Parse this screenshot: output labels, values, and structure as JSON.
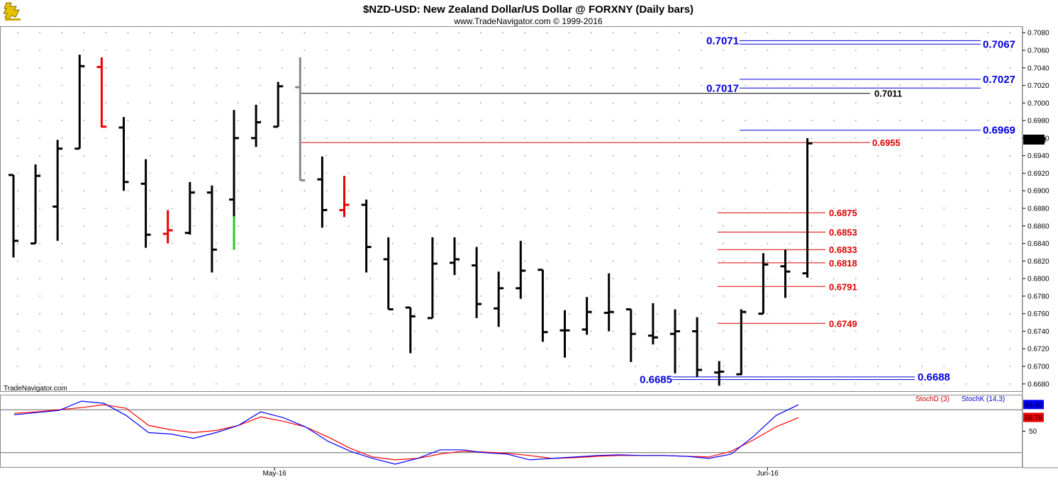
{
  "header": {
    "title": "$NZD-USD:  New Zealand Dollar/US Dollar @ FORXNY  (Daily bars)",
    "subtitle": "www.TradeNavigator.com © 1999-2016",
    "logo_icon": "trade-navigator-logo-icon"
  },
  "watermark": "TradeNavigator.com",
  "last_price_label": "0.6954",
  "chart_data": [
    {
      "type": "ohlc",
      "title": "$NZD-USD:  New Zealand Dollar/US Dollar @ FORXNY  (Daily bars)",
      "ylim": [
        0.6675,
        0.7085
      ],
      "y_ticks": [
        "0.6680",
        "0.6700",
        "0.6720",
        "0.6740",
        "0.6760",
        "0.6780",
        "0.6800",
        "0.6820",
        "0.6840",
        "0.6860",
        "0.6880",
        "0.6900",
        "0.6920",
        "0.6940",
        "0.6960",
        "0.6980",
        "0.7000",
        "0.7020",
        "0.7040",
        "0.7060",
        "0.7080"
      ],
      "x_ticks": [
        {
          "index": 12,
          "label": "May-16"
        },
        {
          "index": 34,
          "label": "Jun-16"
        }
      ],
      "colors": {
        "default": "#000000",
        "down_highlight": "#ee0000",
        "up_highlight": "#22cc22",
        "marker_bar": "#888888"
      },
      "bars": [
        {
          "o": 0.6918,
          "h": 0.6918,
          "l": 0.6824,
          "c": 0.6843,
          "color": "default"
        },
        {
          "o": 0.684,
          "h": 0.693,
          "l": 0.684,
          "c": 0.6917,
          "color": "default"
        },
        {
          "o": 0.6882,
          "h": 0.6958,
          "l": 0.6843,
          "c": 0.6948,
          "color": "default"
        },
        {
          "o": 0.6948,
          "h": 0.7055,
          "l": 0.6948,
          "c": 0.7042,
          "color": "default"
        },
        {
          "o": 0.7041,
          "h": 0.7052,
          "l": 0.6972,
          "c": 0.6973,
          "color": "down_highlight"
        },
        {
          "o": 0.6972,
          "h": 0.6984,
          "l": 0.69,
          "c": 0.691,
          "color": "default"
        },
        {
          "o": 0.6908,
          "h": 0.6936,
          "l": 0.6835,
          "c": 0.685,
          "color": "default"
        },
        {
          "o": 0.6851,
          "h": 0.6878,
          "l": 0.684,
          "c": 0.6855,
          "color": "down_highlight"
        },
        {
          "o": 0.6852,
          "h": 0.691,
          "l": 0.685,
          "c": 0.6898,
          "color": "default"
        },
        {
          "o": 0.6898,
          "h": 0.6906,
          "l": 0.6807,
          "c": 0.6833,
          "color": "default"
        },
        {
          "o": 0.689,
          "h": 0.6992,
          "l": 0.6833,
          "c": 0.696,
          "color": "default",
          "lower_highlight": 0.6871
        },
        {
          "o": 0.696,
          "h": 0.6998,
          "l": 0.695,
          "c": 0.6978,
          "color": "default"
        },
        {
          "o": 0.6973,
          "h": 0.7024,
          "l": 0.6973,
          "c": 0.7019,
          "color": "default"
        },
        {
          "o": 0.7018,
          "h": 0.7052,
          "l": 0.6912,
          "c": 0.6912,
          "color": "marker_bar"
        },
        {
          "o": 0.6913,
          "h": 0.6939,
          "l": 0.6858,
          "c": 0.6878,
          "color": "default"
        },
        {
          "o": 0.6878,
          "h": 0.6917,
          "l": 0.687,
          "c": 0.6884,
          "color": "down_highlight"
        },
        {
          "o": 0.6884,
          "h": 0.689,
          "l": 0.6807,
          "c": 0.6836,
          "color": "default"
        },
        {
          "o": 0.6822,
          "h": 0.6847,
          "l": 0.6765,
          "c": 0.6765,
          "color": "default"
        },
        {
          "o": 0.6767,
          "h": 0.6767,
          "l": 0.6715,
          "c": 0.6757,
          "color": "default"
        },
        {
          "o": 0.6755,
          "h": 0.6847,
          "l": 0.6755,
          "c": 0.6817,
          "color": "default"
        },
        {
          "o": 0.6818,
          "h": 0.6847,
          "l": 0.6804,
          "c": 0.6822,
          "color": "default"
        },
        {
          "o": 0.6815,
          "h": 0.6836,
          "l": 0.6755,
          "c": 0.6771,
          "color": "default"
        },
        {
          "o": 0.6766,
          "h": 0.6808,
          "l": 0.6745,
          "c": 0.6789,
          "color": "default"
        },
        {
          "o": 0.6789,
          "h": 0.6843,
          "l": 0.6777,
          "c": 0.6809,
          "color": "default"
        },
        {
          "o": 0.681,
          "h": 0.681,
          "l": 0.6728,
          "c": 0.6739,
          "color": "default"
        },
        {
          "o": 0.6741,
          "h": 0.6764,
          "l": 0.671,
          "c": 0.6741,
          "color": "default"
        },
        {
          "o": 0.6742,
          "h": 0.6779,
          "l": 0.6736,
          "c": 0.6762,
          "color": "default"
        },
        {
          "o": 0.6761,
          "h": 0.6806,
          "l": 0.674,
          "c": 0.6762,
          "color": "default"
        },
        {
          "o": 0.6765,
          "h": 0.6765,
          "l": 0.6705,
          "c": 0.6737,
          "color": "default"
        },
        {
          "o": 0.6735,
          "h": 0.6772,
          "l": 0.6725,
          "c": 0.6733,
          "color": "default"
        },
        {
          "o": 0.6737,
          "h": 0.6765,
          "l": 0.6692,
          "c": 0.674,
          "color": "default"
        },
        {
          "o": 0.674,
          "h": 0.6756,
          "l": 0.6688,
          "c": 0.6696,
          "color": "default"
        },
        {
          "o": 0.6693,
          "h": 0.6706,
          "l": 0.6678,
          "c": 0.6694,
          "color": "default"
        },
        {
          "o": 0.6691,
          "h": 0.6765,
          "l": 0.669,
          "c": 0.6762,
          "color": "default"
        },
        {
          "o": 0.676,
          "h": 0.6829,
          "l": 0.676,
          "c": 0.6816,
          "color": "default"
        },
        {
          "o": 0.6814,
          "h": 0.6833,
          "l": 0.6778,
          "c": 0.6808,
          "color": "default"
        },
        {
          "o": 0.6806,
          "h": 0.696,
          "l": 0.6801,
          "c": 0.6954,
          "color": "default"
        }
      ],
      "levels": [
        {
          "label": "0.7071",
          "value": 0.7071,
          "color": "#0000dd",
          "group": "high"
        },
        {
          "label": "0.7067",
          "value": 0.7067,
          "color": "#0000dd",
          "group": "high"
        },
        {
          "label": "0.7027",
          "value": 0.7027,
          "color": "#0000dd",
          "group": "high"
        },
        {
          "label": "0.7017",
          "value": 0.7017,
          "color": "#0000dd",
          "group": "high"
        },
        {
          "label": "0.7011",
          "value": 0.7011,
          "color": "#000000",
          "group": "black"
        },
        {
          "label": "0.6969",
          "value": 0.6969,
          "color": "#0000dd",
          "group": "high"
        },
        {
          "label": "0.6955",
          "value": 0.6955,
          "color": "#dd0000",
          "group": "red-long"
        },
        {
          "label": "0.6875",
          "value": 0.6875,
          "color": "#dd0000",
          "group": "red"
        },
        {
          "label": "0.6853",
          "value": 0.6853,
          "color": "#dd0000",
          "group": "red"
        },
        {
          "label": "0.6833",
          "value": 0.6833,
          "color": "#dd0000",
          "group": "red"
        },
        {
          "label": "0.6818",
          "value": 0.6818,
          "color": "#dd0000",
          "group": "red"
        },
        {
          "label": "0.6791",
          "value": 0.6791,
          "color": "#dd0000",
          "group": "red"
        },
        {
          "label": "0.6749",
          "value": 0.6749,
          "color": "#dd0000",
          "group": "red"
        },
        {
          "label": "0.6688",
          "value": 0.6688,
          "color": "#0000dd",
          "group": "low"
        },
        {
          "label": "0.6685",
          "value": 0.6685,
          "color": "#0000dd",
          "group": "low"
        }
      ]
    },
    {
      "type": "line",
      "title": "",
      "ylim": [
        0,
        100
      ],
      "y_ticks": [
        "50"
      ],
      "reference_lines": [
        80,
        20
      ],
      "current_labels": [
        {
          "label": "86.80",
          "value": 86.8,
          "color": "#0000ff"
        },
        {
          "label": "68.78",
          "value": 68.78,
          "color": "#ee0000"
        }
      ],
      "legend_entries": [
        {
          "label": "StochD (3)",
          "color": "#cc0000"
        },
        {
          "label": "StochK (14,3)",
          "color": "#0000cc"
        }
      ],
      "series": [
        {
          "name": "StochK (14,3)",
          "color": "#0000ff",
          "points": [
            [
              0,
              73
            ],
            [
              1,
              76
            ],
            [
              2,
              79
            ],
            [
              3,
              92
            ],
            [
              4,
              89
            ],
            [
              5,
              72
            ],
            [
              6,
              48
            ],
            [
              7,
              46
            ],
            [
              8,
              40
            ],
            [
              9,
              48
            ],
            [
              10,
              58
            ],
            [
              11,
              77
            ],
            [
              12,
              69
            ],
            [
              13,
              56
            ],
            [
              14,
              36
            ],
            [
              15,
              22
            ],
            [
              16,
              12
            ],
            [
              17,
              4
            ],
            [
              18,
              12
            ],
            [
              19,
              24
            ],
            [
              20,
              24
            ],
            [
              21,
              20
            ],
            [
              22,
              18
            ],
            [
              23,
              10
            ],
            [
              24,
              12
            ],
            [
              25,
              14
            ],
            [
              26,
              16
            ],
            [
              27,
              17
            ],
            [
              28,
              16
            ],
            [
              29,
              16
            ],
            [
              30,
              15
            ],
            [
              31,
              12
            ],
            [
              32,
              18
            ],
            [
              33,
              43
            ],
            [
              34,
              72
            ],
            [
              35,
              87
            ]
          ]
        },
        {
          "name": "StochD (3)",
          "color": "#ff0000",
          "points": [
            [
              0,
              75
            ],
            [
              1,
              77
            ],
            [
              2,
              80
            ],
            [
              3,
              83
            ],
            [
              4,
              87
            ],
            [
              5,
              82
            ],
            [
              6,
              58
            ],
            [
              7,
              52
            ],
            [
              8,
              48
            ],
            [
              9,
              51
            ],
            [
              10,
              58
            ],
            [
              11,
              70
            ],
            [
              12,
              64
            ],
            [
              13,
              56
            ],
            [
              14,
              42
            ],
            [
              15,
              26
            ],
            [
              16,
              14
            ],
            [
              17,
              10
            ],
            [
              18,
              12
            ],
            [
              19,
              18
            ],
            [
              20,
              22
            ],
            [
              21,
              21
            ],
            [
              22,
              19
            ],
            [
              23,
              16
            ],
            [
              24,
              12
            ],
            [
              25,
              13
            ],
            [
              26,
              15
            ],
            [
              27,
              16
            ],
            [
              28,
              16
            ],
            [
              29,
              16
            ],
            [
              30,
              15
            ],
            [
              31,
              14
            ],
            [
              32,
              22
            ],
            [
              33,
              38
            ],
            [
              34,
              56
            ],
            [
              35,
              69
            ]
          ]
        }
      ]
    }
  ]
}
